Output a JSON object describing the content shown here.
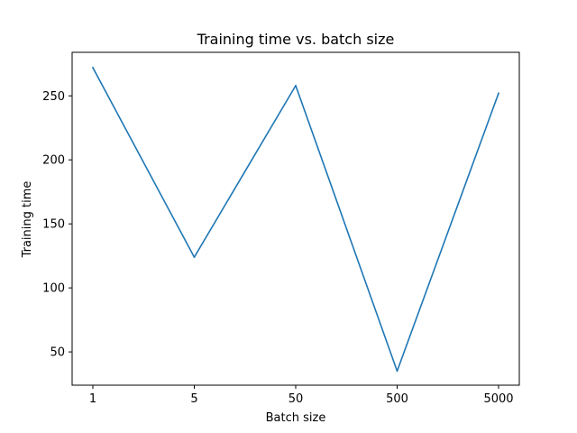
{
  "chart_data": {
    "type": "line",
    "title": "Training time vs. batch size",
    "xlabel": "Batch size",
    "ylabel": "Training time",
    "categories": [
      "1",
      "5",
      "50",
      "500",
      "5000"
    ],
    "series": [
      {
        "values": [
          272,
          124,
          258,
          35,
          252
        ],
        "color": "#1f77b4"
      }
    ],
    "ylim": [
      24,
      284
    ],
    "yticks": [
      50,
      100,
      150,
      200,
      250
    ],
    "grid": false
  }
}
